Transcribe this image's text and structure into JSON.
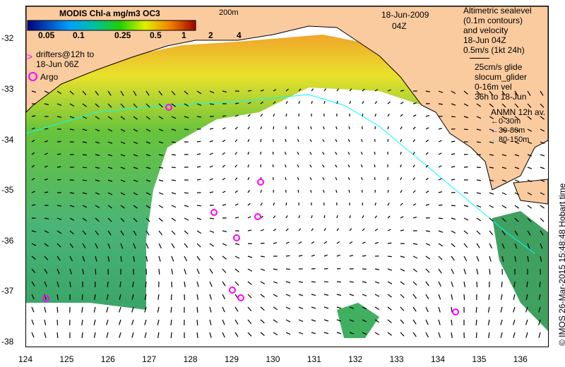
{
  "colorbar": {
    "title": "MODIS Chl-a mg/m3 OC3",
    "ticks": [
      "0.05",
      "0.1",
      "0.25",
      "0.5",
      "1",
      "2",
      "4"
    ]
  },
  "date": "18-Jun-2009",
  "time": "04Z",
  "isobath": "200m",
  "drifters_label": [
    "drifters@12h to",
    "18-Jun 06Z"
  ],
  "argo_label": "Argo",
  "altimetry_label": [
    "Altimetric sealevel",
    "(0.1m contours)",
    "and velocity",
    "18-Jun 04Z",
    "0.5m/s (1kt 24h)"
  ],
  "glider_label": [
    "25cm/s glide",
    "slocum_glider",
    "0-16m vel",
    "36h to 18-Jun"
  ],
  "anmn": {
    "title": "ANMN 12h av.",
    "items": [
      {
        "label": "0-30m",
        "color": "#000000"
      },
      {
        "label": "30-80m",
        "color": "#0000ff"
      },
      {
        "label": "80-150m",
        "color": "#00ffff"
      }
    ]
  },
  "lat_ticks": [
    "-32",
    "-33",
    "-34",
    "-35",
    "-36",
    "-37",
    "-38"
  ],
  "lon_ticks": [
    "124",
    "125",
    "126",
    "127",
    "128",
    "129",
    "130",
    "131",
    "132",
    "133",
    "134",
    "135",
    "136"
  ],
  "credit": "© IMOS 26-Mar-2015 15:48:48 Hobart time",
  "colors": {
    "land": "#fbcba0",
    "argo": "#ff00ff",
    "drifter": "#ff00ff",
    "isobath": "#00ffff"
  }
}
